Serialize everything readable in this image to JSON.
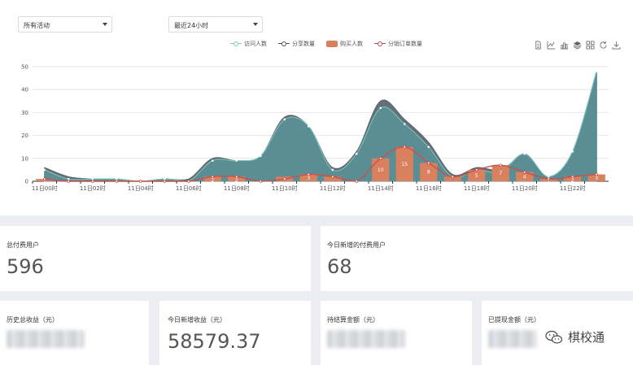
{
  "filters": {
    "activity": "所有活动",
    "range": "最近24小时"
  },
  "legend": [
    {
      "name": "访问人数",
      "kind": "line",
      "color": "#7ec8b8"
    },
    {
      "name": "分享数量",
      "kind": "line",
      "color": "#4a5058"
    },
    {
      "name": "购买人数",
      "kind": "bar",
      "color": "#d9805e"
    },
    {
      "name": "分销订单数量",
      "kind": "line",
      "color": "#c9504a"
    }
  ],
  "toolbox": [
    "data-view-icon",
    "line-switch-icon",
    "bar-switch-icon",
    "stack-icon",
    "tiled-icon",
    "restore-icon",
    "save-image-icon"
  ],
  "colors": {
    "visits_fill": "#5b8e96",
    "shares_fill": "#5c6770",
    "purchases": "#d9805e",
    "distribution": "#c9504a",
    "grid": "#e6e6e6"
  },
  "chart_data": {
    "type": "line",
    "x": [
      "11日00时",
      "11日01时",
      "11日02时",
      "11日03时",
      "11日04时",
      "11日05时",
      "11日06时",
      "11日07时",
      "11日08时",
      "11日09时",
      "11日10时",
      "11日11时",
      "11日12时",
      "11日13时",
      "11日14时",
      "11日15时",
      "11日16时",
      "11日17时",
      "11日18时",
      "11日19时",
      "11日20时",
      "11日21时",
      "11日22时",
      "11日23时"
    ],
    "x_tick_labels": [
      "11日00时",
      "11日02时",
      "11日04时",
      "11日06时",
      "11日08时",
      "11日10时",
      "11日12时",
      "11日14时",
      "11日16时",
      "11日18时",
      "11日20时",
      "11日22时"
    ],
    "ylim": [
      0,
      50
    ],
    "yticks": [
      0,
      10,
      20,
      30,
      40,
      50
    ],
    "grid": true,
    "legend_position": "top-center",
    "series": [
      {
        "name": "访问人数",
        "type": "area",
        "values": [
          5,
          1,
          1,
          1,
          0,
          1,
          0,
          9,
          9,
          11,
          27,
          24,
          5,
          12,
          32,
          25,
          15,
          2,
          5,
          4,
          12,
          2,
          13,
          48
        ]
      },
      {
        "name": "分享数量",
        "type": "area",
        "values": [
          6,
          2,
          1,
          1,
          0,
          1,
          1,
          10,
          9,
          11,
          28,
          24,
          6,
          13,
          35,
          27,
          17,
          3,
          6,
          5,
          11,
          2,
          13,
          48
        ]
      },
      {
        "name": "购买人数",
        "type": "bar",
        "values": [
          1,
          0,
          0,
          0,
          0,
          0,
          0,
          2,
          2,
          0,
          2,
          3,
          2,
          0,
          10,
          15,
          8,
          2,
          5,
          7,
          4,
          1,
          2,
          3
        ],
        "data_labels": [
          "1",
          "",
          "",
          "",
          "",
          "",
          "",
          "2",
          "2",
          "",
          "",
          "3",
          "",
          "",
          "10",
          "15",
          "8",
          "",
          "5",
          "7",
          "4",
          "1",
          "2",
          "3"
        ]
      },
      {
        "name": "分销订单数量",
        "type": "line",
        "values": [
          1,
          0,
          0,
          0,
          0,
          0,
          0,
          2,
          2,
          0,
          1,
          3,
          2,
          0,
          10,
          15,
          8,
          2,
          5,
          7,
          4,
          1,
          2,
          3
        ]
      }
    ]
  },
  "stats_row1": [
    {
      "label": "总付费用户",
      "value": "596"
    },
    {
      "label": "今日新增的付费用户",
      "value": "68"
    }
  ],
  "stats_row2": [
    {
      "label": "历史总收益（元）",
      "value": ""
    },
    {
      "label": "今日新增收益（元）",
      "value": "58579.37"
    },
    {
      "label": "待结算金额（元）",
      "value": ""
    },
    {
      "label": "已提现金额（元）",
      "value": ""
    }
  ],
  "watermark": "棋校通"
}
